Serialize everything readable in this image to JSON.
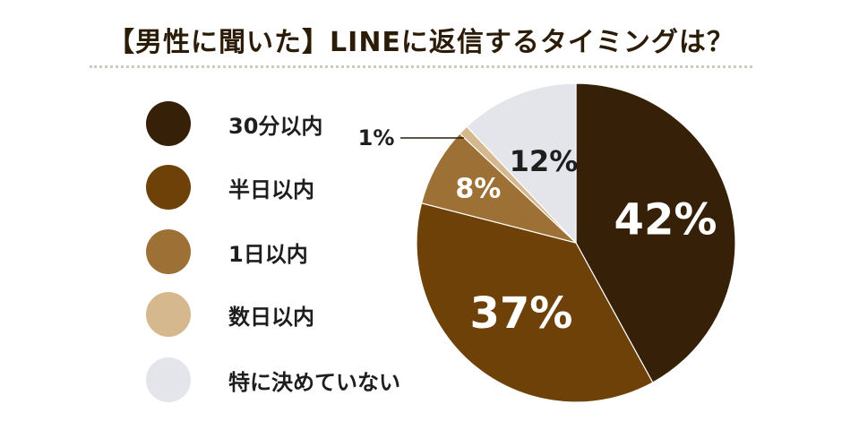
{
  "title": "【男性に聞いた】LINEに返信するタイミングは？",
  "colors": {
    "title": "#2b1c08",
    "rule": "#cfcac0",
    "legend_text": "#1e1e1e",
    "leader_line": "#2b1c08"
  },
  "chart_data": {
    "type": "pie",
    "title": "【男性に聞いた】LINEに返信するタイミングは？",
    "start": "12 o'clock",
    "direction": "clockwise",
    "legend_position": "left",
    "slices": [
      {
        "label": "30分以内",
        "value": 42,
        "display": "42%",
        "color": "#362008",
        "label_color": "#ffffff"
      },
      {
        "label": "半日以内",
        "value": 37,
        "display": "37%",
        "color": "#6d4108",
        "label_color": "#ffffff"
      },
      {
        "label": "1日以内",
        "value": 8,
        "display": "8%",
        "color": "#9d7035",
        "label_color": "#ffffff"
      },
      {
        "label": "数日以内",
        "value": 1,
        "display": "1%",
        "color": "#d5b88e",
        "label_color": "#1e1e1e"
      },
      {
        "label": "特に決めていない",
        "value": 12,
        "display": "12%",
        "color": "#e3e5ea",
        "label_color": "#1e1e1e"
      }
    ]
  }
}
